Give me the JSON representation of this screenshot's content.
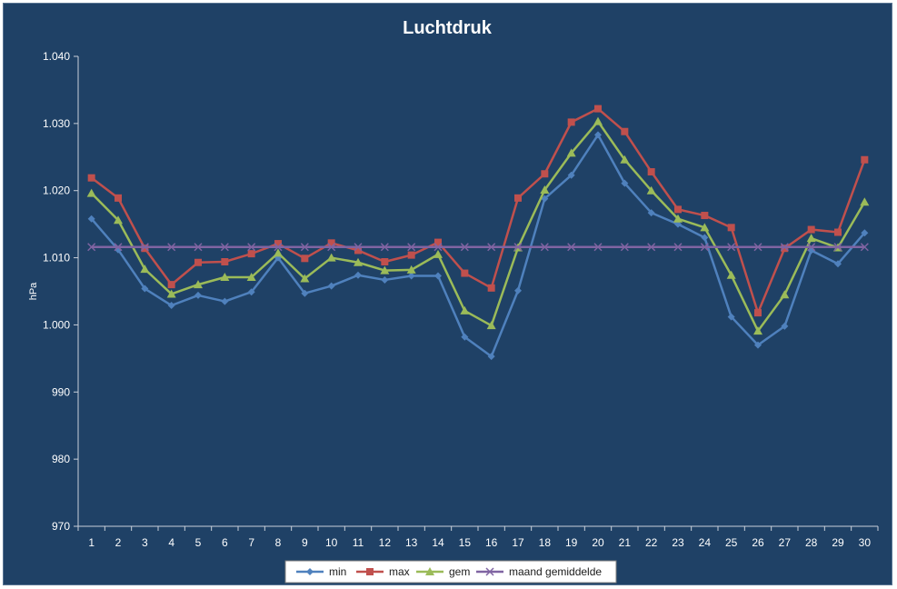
{
  "chart_data": {
    "type": "line",
    "title": "Luchtdruk",
    "ylabel": "hPa",
    "xlabel": "",
    "ylim": [
      970,
      1040
    ],
    "y_ticks": [
      {
        "value": 970,
        "label": "970"
      },
      {
        "value": 980,
        "label": "980"
      },
      {
        "value": 990,
        "label": "990"
      },
      {
        "value": 1000,
        "label": "1.000"
      },
      {
        "value": 1010,
        "label": "1.010"
      },
      {
        "value": 1020,
        "label": "1.020"
      },
      {
        "value": 1030,
        "label": "1.030"
      },
      {
        "value": 1040,
        "label": "1.040"
      }
    ],
    "grid": false,
    "legend_position": "bottom",
    "categories": [
      "1",
      "2",
      "3",
      "4",
      "5",
      "6",
      "7",
      "8",
      "9",
      "10",
      "11",
      "12",
      "13",
      "14",
      "15",
      "16",
      "17",
      "18",
      "19",
      "20",
      "21",
      "22",
      "23",
      "24",
      "25",
      "26",
      "27",
      "28",
      "29",
      "30"
    ],
    "series": [
      {
        "name": "min",
        "color": "#4f81bd",
        "marker": "diamond",
        "values": [
          1015.8,
          1011.2,
          1005.4,
          1002.9,
          1004.4,
          1003.5,
          1004.9,
          1010.0,
          1004.7,
          1005.8,
          1007.4,
          1006.7,
          1007.3,
          1007.3,
          998.2,
          995.3,
          1005.1,
          1018.8,
          1022.3,
          1028.3,
          1021.1,
          1016.7,
          1015.0,
          1013.0,
          1001.2,
          997.0,
          999.8,
          1011.1,
          1009.1,
          1013.7
        ]
      },
      {
        "name": "max",
        "color": "#c0504d",
        "marker": "square",
        "values": [
          1021.9,
          1018.9,
          1011.4,
          1006.0,
          1009.3,
          1009.4,
          1010.6,
          1012.1,
          1009.9,
          1012.2,
          1011.1,
          1009.4,
          1010.4,
          1012.3,
          1007.7,
          1005.5,
          1018.9,
          1022.5,
          1030.2,
          1032.2,
          1028.8,
          1022.8,
          1017.2,
          1016.3,
          1014.5,
          1001.8,
          1011.4,
          1014.2,
          1013.8,
          1024.6
        ]
      },
      {
        "name": "gem",
        "color": "#9bbb59",
        "marker": "triangle",
        "values": [
          1019.6,
          1015.6,
          1008.3,
          1004.6,
          1006.0,
          1007.1,
          1007.1,
          1010.7,
          1006.9,
          1010.0,
          1009.3,
          1008.1,
          1008.2,
          1010.5,
          1002.1,
          999.9,
          1011.5,
          1020.1,
          1025.6,
          1030.3,
          1024.6,
          1020.0,
          1015.8,
          1014.5,
          1007.4,
          999.1,
          1004.5,
          1012.9,
          1011.5,
          1018.3
        ]
      },
      {
        "name": "maand gemiddelde",
        "color": "#8064a2",
        "marker": "x",
        "values": [
          1011.6,
          1011.6,
          1011.6,
          1011.6,
          1011.6,
          1011.6,
          1011.6,
          1011.6,
          1011.6,
          1011.6,
          1011.6,
          1011.6,
          1011.6,
          1011.6,
          1011.6,
          1011.6,
          1011.6,
          1011.6,
          1011.6,
          1011.6,
          1011.6,
          1011.6,
          1011.6,
          1011.6,
          1011.6,
          1011.6,
          1011.6,
          1011.6,
          1011.6,
          1011.6
        ]
      }
    ]
  },
  "colors": {
    "background": "#1f4166",
    "axis": "#c8d0da",
    "text": "#ffffff",
    "legend_bg": "#ffffff"
  }
}
